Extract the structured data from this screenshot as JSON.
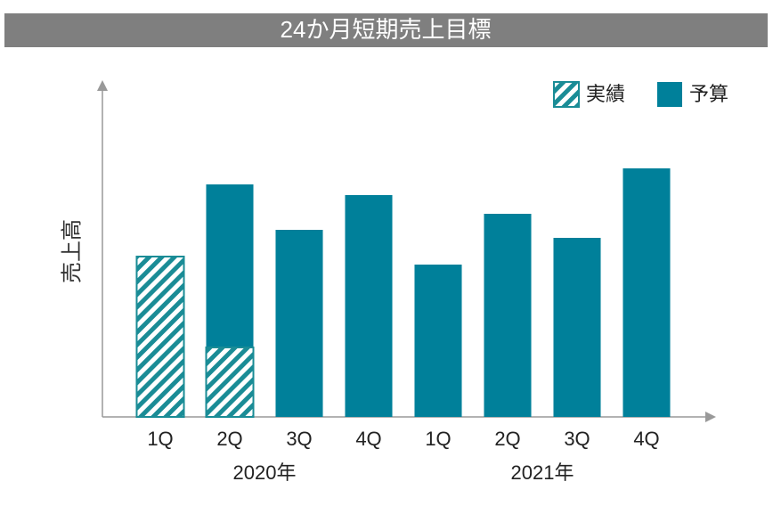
{
  "chart_data": {
    "type": "bar",
    "title": "24か月短期売上目標",
    "y_label": "売上高",
    "categories": [
      "1Q",
      "2Q",
      "3Q",
      "4Q",
      "1Q",
      "2Q",
      "3Q",
      "4Q"
    ],
    "groups": [
      "2020年",
      "2021年"
    ],
    "series": [
      {
        "name": "予算",
        "color": "#00809a",
        "pattern": "solid",
        "values": [
          null,
          87,
          70,
          83,
          57,
          76,
          67,
          93
        ]
      },
      {
        "name": "実績",
        "color": "#1a8c96",
        "pattern": "hatched",
        "values": [
          60,
          26,
          null,
          null,
          null,
          null,
          null,
          null
        ]
      }
    ],
    "legend_order": [
      1,
      0
    ],
    "ylim": [
      0,
      125
    ],
    "legend": "top-right"
  }
}
